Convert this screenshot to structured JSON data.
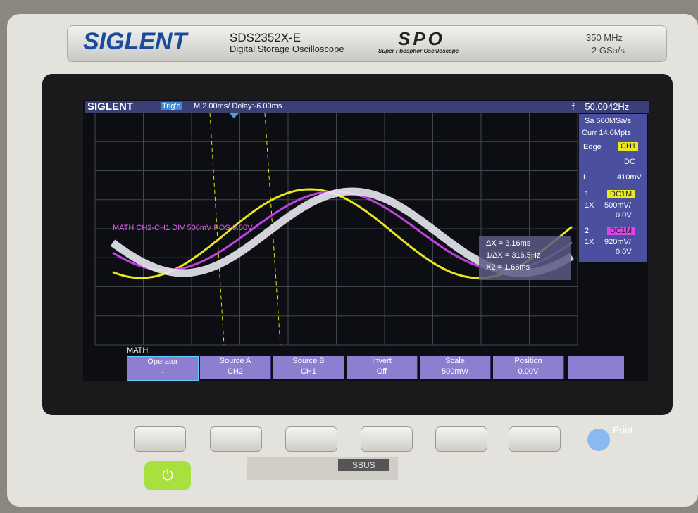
{
  "panel": {
    "brand": "SIGLENT",
    "model": "SDS2352X-E",
    "subtitle": "Digital Storage Oscilloscope",
    "logo": "SPO",
    "logo_caption": "Super Phosphor Oscilloscope",
    "bandwidth": "350 MHz",
    "sample_rate": "2 GSa/s"
  },
  "screen": {
    "brand": "SIGLENT",
    "trigger_state": "Trig'd",
    "timebase": "M 2.00ms/ Delay:-6.00ms",
    "frequency": "f = 50.0042Hz",
    "acquisition": {
      "sample_rate": "Sa 500MSa/s",
      "memory": "Curr 14.0Mpts"
    },
    "trigger": {
      "type": "Edge",
      "source": "CH1",
      "coupling": "DC",
      "level_label": "L",
      "level": "410mV"
    },
    "channels": [
      {
        "number": "1",
        "coupling": "DC1M",
        "probe": "1X",
        "scale": "500mV/",
        "offset": "0.0V"
      },
      {
        "number": "2",
        "coupling": "DC1M",
        "probe": "1X",
        "scale": "920mV/",
        "offset": "0.0V"
      }
    ],
    "math_label": "MATH  CH2-CH1  DIV 500mV  POS 0.00V",
    "cursor": [
      "ΔX = 3.16ms",
      "1/ΔX = 316.5Hz",
      "X2 = 1.66ms"
    ],
    "menu": {
      "title": "MATH",
      "items": [
        {
          "label": "Operator",
          "value": "-"
        },
        {
          "label": "Source A",
          "value": "CH2"
        },
        {
          "label": "Source B",
          "value": "CH1"
        },
        {
          "label": "Invert",
          "value": "Off"
        },
        {
          "label": "Scale",
          "value": "500mV/"
        },
        {
          "label": "Position",
          "value": "0.00V"
        }
      ]
    }
  },
  "controls": {
    "print": "Print",
    "bus": "SBUS"
  }
}
